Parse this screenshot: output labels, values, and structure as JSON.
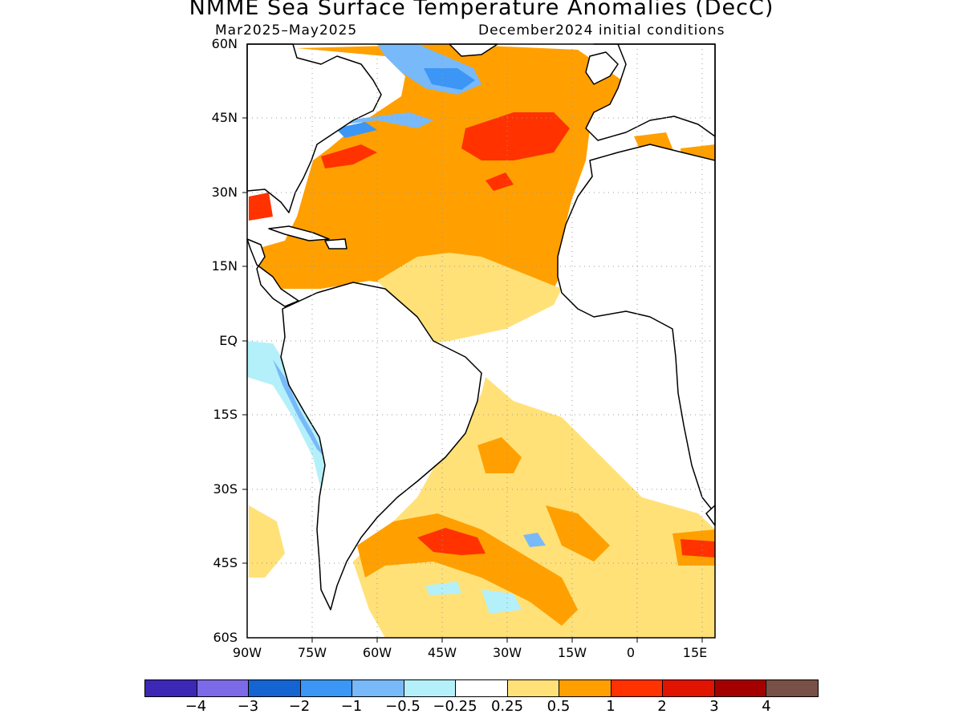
{
  "map": {
    "title": "NMME Sea Surface Temperature Anomalies (DecC)",
    "season": "Mar2025–May2025",
    "initial_conditions": "December2024 initial conditions",
    "lat_labels": [
      "60N",
      "45N",
      "30N",
      "15N",
      "EQ",
      "15S",
      "30S",
      "45S",
      "60S"
    ],
    "lon_labels": [
      "90W",
      "75W",
      "60W",
      "45W",
      "30W",
      "15W",
      "0",
      "15E"
    ],
    "region": {
      "lon_min": -90,
      "lon_max": 18,
      "lat_min": -60,
      "lat_max": 60
    },
    "layers": [
      "ocean anomaly shading",
      "coastlines",
      "dotted lat/lon grid"
    ]
  },
  "colorbar": {
    "labels": [
      "−4",
      "−3",
      "−2",
      "−1",
      "−0.5",
      "−0.25",
      "0.25",
      "0.5",
      "1",
      "2",
      "3",
      "4"
    ],
    "colors": [
      "#3c28b4",
      "#7c6ae6",
      "#1464d2",
      "#3c96f5",
      "#78b9fa",
      "#b4f0fa",
      "#ffffff",
      "#ffe178",
      "#ffa000",
      "#ff3200",
      "#e11400",
      "#a50000",
      "#785046"
    ]
  }
}
